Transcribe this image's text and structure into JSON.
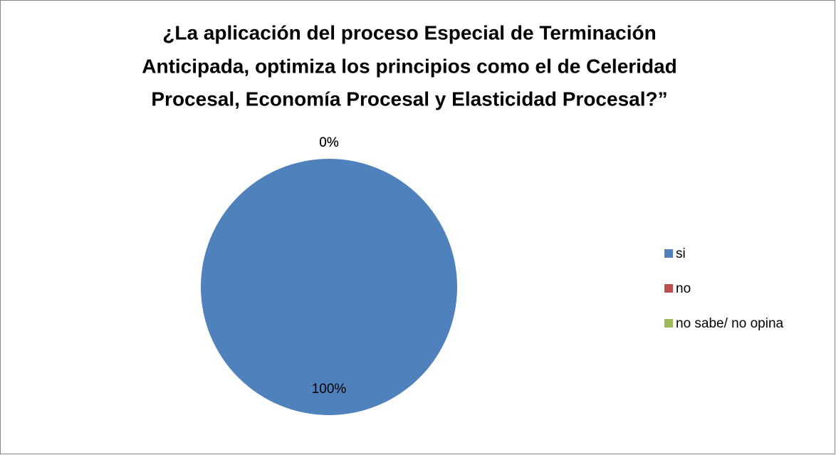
{
  "chart_data": {
    "type": "pie",
    "title": [
      "¿La aplicación del proceso Especial de Terminación",
      "Anticipada, optimiza los principios como el de Celeridad",
      "Procesal, Economía Procesal y Elasticidad Procesal?”"
    ],
    "categories": [
      "si",
      "no",
      "no sabe/ no opina"
    ],
    "values": [
      100,
      0,
      0
    ],
    "value_labels": [
      "100%",
      "0%",
      "0%"
    ],
    "colors": [
      "#4f81bd",
      "#c0504d",
      "#9bbb59"
    ],
    "legend": "right"
  }
}
